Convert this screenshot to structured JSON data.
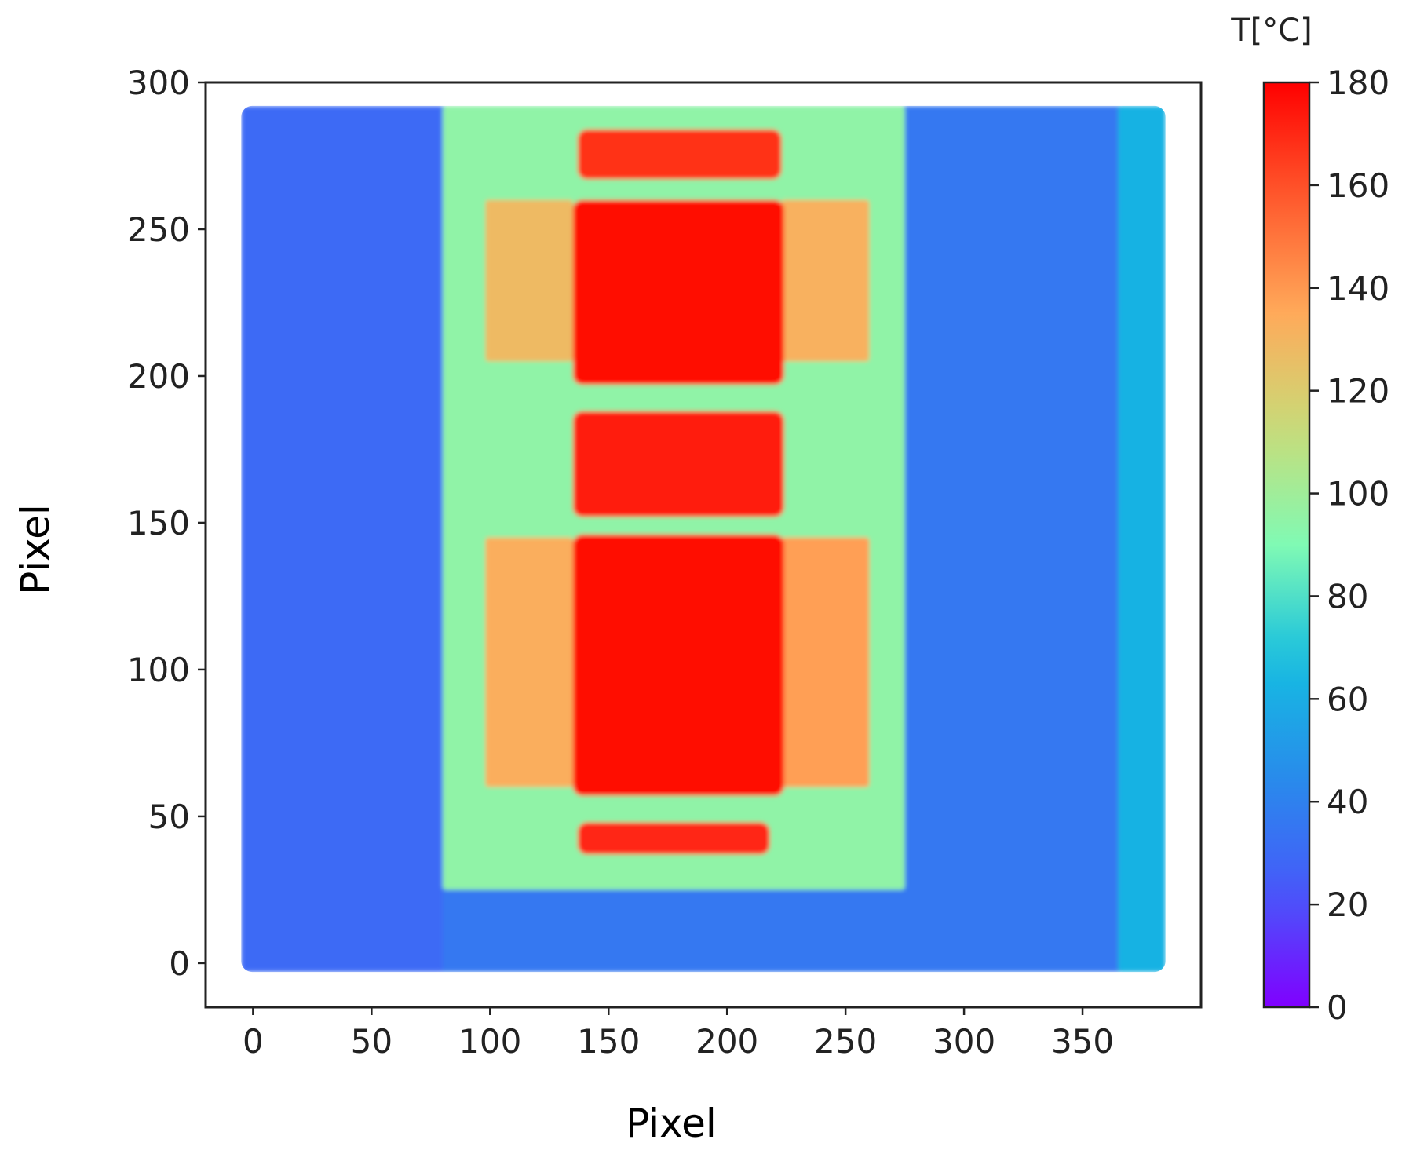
{
  "chart_data": {
    "type": "heatmap",
    "title": "",
    "xlabel": "Pixel",
    "ylabel": "Pixel",
    "xlim": [
      -20,
      400
    ],
    "ylim": [
      -15,
      300
    ],
    "x_ticks": [
      0,
      50,
      100,
      150,
      200,
      250,
      300,
      350
    ],
    "y_ticks": [
      0,
      50,
      100,
      150,
      200,
      250,
      300
    ],
    "image_extent": {
      "x": [
        -5,
        385
      ],
      "y": [
        -3,
        292
      ]
    },
    "colormap": "rainbow",
    "colorbar": {
      "label": "T[°C]",
      "range": [
        0,
        180
      ],
      "ticks": [
        0,
        20,
        40,
        60,
        80,
        100,
        120,
        140,
        160,
        180
      ]
    },
    "temperature_regions_celsius": [
      {
        "region": "background",
        "x": [
          -5,
          385
        ],
        "y": [
          -3,
          292
        ],
        "value": 36
      },
      {
        "region": "left-outer",
        "x": [
          -5,
          80
        ],
        "y": [
          -3,
          292
        ],
        "value": 30
      },
      {
        "region": "right-edge-strip",
        "x": [
          365,
          385
        ],
        "y": [
          -3,
          292
        ],
        "value": 62
      },
      {
        "region": "mold-frame",
        "x": [
          80,
          275
        ],
        "y": [
          25,
          292
        ],
        "value": 95
      },
      {
        "region": "side-panel-left-upper",
        "x": [
          98,
          135
        ],
        "y": [
          205,
          260
        ],
        "value": 128
      },
      {
        "region": "side-panel-left-lower",
        "x": [
          98,
          135
        ],
        "y": [
          60,
          145
        ],
        "value": 133
      },
      {
        "region": "side-panel-right-upper",
        "x": [
          223,
          260
        ],
        "y": [
          205,
          260
        ],
        "value": 132
      },
      {
        "region": "side-panel-right-lower",
        "x": [
          223,
          260
        ],
        "y": [
          60,
          145
        ],
        "value": 138
      },
      {
        "region": "hot-strip-top",
        "x": [
          137,
          223
        ],
        "y": [
          267,
          284
        ],
        "value": 168
      },
      {
        "region": "hot-block-upper",
        "x": [
          135,
          224
        ],
        "y": [
          197,
          260
        ],
        "value": 177
      },
      {
        "region": "hot-block-middle",
        "x": [
          135,
          224
        ],
        "y": [
          152,
          188
        ],
        "value": 173
      },
      {
        "region": "hot-block-lower",
        "x": [
          135,
          224
        ],
        "y": [
          57,
          146
        ],
        "value": 178
      },
      {
        "region": "hot-strip-bottom",
        "x": [
          137,
          218
        ],
        "y": [
          37,
          48
        ],
        "value": 170
      }
    ]
  }
}
